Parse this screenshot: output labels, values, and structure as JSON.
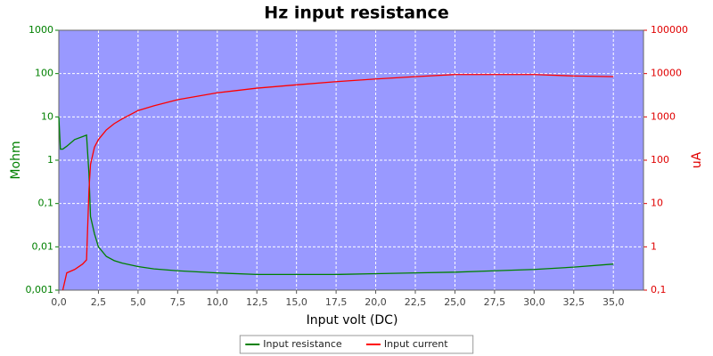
{
  "chart_data": {
    "type": "line",
    "title": "Hz input resistance",
    "x_label": "Input volt (DC)",
    "y_label": "Mohm",
    "y2_label": "uA",
    "x": [
      0,
      0.1,
      0.25,
      0.5,
      1,
      1.5,
      1.75,
      1.9,
      2,
      2.25,
      2.5,
      3,
      3.5,
      4,
      5,
      6,
      7.5,
      10,
      12.5,
      15,
      17.5,
      20,
      22.5,
      25,
      27.5,
      30,
      32.5,
      35
    ],
    "series": [
      {
        "name": "Input resistance",
        "color": "#008000",
        "axis": "y",
        "values": [
          10,
          1.8,
          1.8,
          2.1,
          3.0,
          3.5,
          3.8,
          0.5,
          0.05,
          0.02,
          0.01,
          0.006,
          0.0048,
          0.0042,
          0.0035,
          0.0031,
          0.0028,
          0.0025,
          0.0023,
          0.0023,
          0.0023,
          0.0024,
          0.0025,
          0.0026,
          0.0028,
          0.003,
          0.0034,
          0.004
        ]
      },
      {
        "name": "Input current",
        "color": "#ff0000",
        "axis": "y2",
        "values": [
          null,
          null,
          0.1,
          0.25,
          0.3,
          0.4,
          0.5,
          20,
          80,
          200,
          300,
          500,
          700,
          900,
          1400,
          1800,
          2500,
          3600,
          4600,
          5500,
          6500,
          7500,
          8500,
          9500,
          9500,
          9500,
          8800,
          8500
        ]
      }
    ],
    "xlim": [
      0,
      36.9
    ],
    "xticks": [
      {
        "value": 0,
        "label": "0,0"
      },
      {
        "value": 2.5,
        "label": "2,5"
      },
      {
        "value": 5,
        "label": "5,0"
      },
      {
        "value": 7.5,
        "label": "7,5"
      },
      {
        "value": 10,
        "label": "10,0"
      },
      {
        "value": 12.5,
        "label": "12,5"
      },
      {
        "value": 15,
        "label": "15,0"
      },
      {
        "value": 17.5,
        "label": "17,5"
      },
      {
        "value": 20,
        "label": "20,0"
      },
      {
        "value": 22.5,
        "label": "22,5"
      },
      {
        "value": 25,
        "label": "25,0"
      },
      {
        "value": 27.5,
        "label": "27,5"
      },
      {
        "value": 30,
        "label": "30,0"
      },
      {
        "value": 32.5,
        "label": "32,5"
      },
      {
        "value": 35,
        "label": "35,0"
      }
    ],
    "ylim": [
      0.001,
      1000
    ],
    "yticks": [
      {
        "value": 0.001,
        "label": "0,001"
      },
      {
        "value": 0.01,
        "label": "0,01"
      },
      {
        "value": 0.1,
        "label": "0,1"
      },
      1,
      10,
      100,
      1000
    ],
    "y2lim": [
      0.1,
      100000
    ],
    "y2ticks": [
      {
        "value": 0.1,
        "label": "0,1"
      },
      1,
      10,
      100,
      1000,
      10000,
      100000
    ],
    "ylog": true,
    "y2log": true,
    "grid": true,
    "legend": "bottom"
  }
}
